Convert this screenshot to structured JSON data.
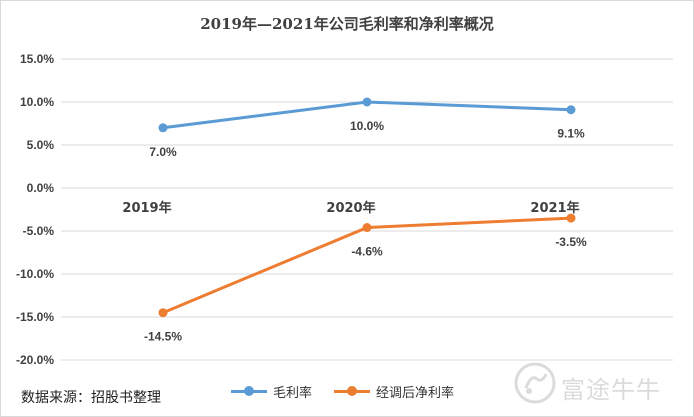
{
  "chart_data": {
    "type": "line",
    "title": "2019年—2021年公司毛利率和净利率概况",
    "categories": [
      "2019年",
      "2020年",
      "2021年"
    ],
    "series": [
      {
        "name": "毛利率",
        "values": [
          7.0,
          10.0,
          9.1
        ],
        "labels": [
          "7.0%",
          "10.0%",
          "9.1%"
        ],
        "color": "#5b9bd5"
      },
      {
        "name": "经调后净利率",
        "values": [
          -14.5,
          -4.6,
          -3.5
        ],
        "labels": [
          "-14.5%",
          "-4.6%",
          "-3.5%"
        ],
        "color": "#ed7d31"
      }
    ],
    "ylim": [
      -20,
      15
    ],
    "yticks": [
      15,
      10,
      5,
      0,
      -5,
      -10,
      -15,
      -20
    ],
    "ytick_labels": [
      "15.0%",
      "10.0%",
      "5.0%",
      "0.0%",
      "-5.0%",
      "-10.0%",
      "-15.0%",
      "-20.0%"
    ],
    "grid": true,
    "legend_position": "bottom"
  },
  "source_note": "数据来源：招股书整理",
  "watermark": {
    "text": "富途牛牛",
    "icon": "futu-logo-icon"
  }
}
